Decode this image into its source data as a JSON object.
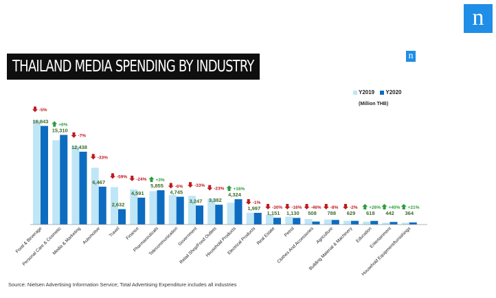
{
  "brand": {
    "logo_letter": "n",
    "logo_color": "#1f8ee6"
  },
  "title": "THAILAND MEDIA SPENDING BY INDUSTRY",
  "source": "Source: Nielsen Advertising Information Service; Total Advertising Expenditure includes all industries",
  "chart_data": {
    "type": "bar",
    "title": "THAILAND MEDIA SPENDING BY INDUSTRY",
    "unit_label": "(Million THB)",
    "categories": [
      "Food & Beverage",
      "Personal Care & Cosmetic",
      "Media & Marketing",
      "Automotive",
      "Travel",
      "Finance",
      "Pharmaceuticals",
      "Telecommunication",
      "Government",
      "Retail Shop/Food Outlets",
      "Household Products",
      "Electrical Products",
      "Real Estate",
      "Petrol",
      "Clothes And Accessories",
      "Agriculture",
      "Building Material & Machinery",
      "Education",
      "Entertainment",
      "Household Equipment/furnishings"
    ],
    "series": [
      {
        "name": "Y2019",
        "color": "#bfe6f6",
        "values": [
          17800,
          14400,
          13400,
          9700,
          6400,
          6000,
          5700,
          5050,
          4900,
          4400,
          3730,
          2020,
          1650,
          1340,
          940,
          860,
          640,
          490,
          316,
          300
        ]
      },
      {
        "name": "Y2020",
        "color": "#0d6cbf",
        "values": [
          16843,
          15310,
          12438,
          6467,
          2632,
          4591,
          5855,
          4745,
          3247,
          3382,
          4324,
          1997,
          1151,
          1130,
          508,
          788,
          629,
          618,
          442,
          364
        ]
      }
    ],
    "value_labels": [
      "16,843",
      "15,310",
      "12,438",
      "6,467",
      "2,632",
      "4,591",
      "5,855",
      "4,745",
      "3,247",
      "3,382",
      "4,324",
      "1,997",
      "1,151",
      "1,130",
      "508",
      "788",
      "629",
      "618",
      "442",
      "364"
    ],
    "changes": [
      "-5%",
      "+6%",
      "-7%",
      "-33%",
      "-59%",
      "-24%",
      "+3%",
      "-6%",
      "-33%",
      "-23%",
      "+16%",
      "-1%",
      "-30%",
      "-16%",
      "-46%",
      "-8%",
      "-2%",
      "+26%",
      "+40%",
      "+21%"
    ],
    "ylim": [
      0,
      19000
    ],
    "grid": false,
    "legend_position": "top-right",
    "colors": {
      "up": "#2a9d3a",
      "down": "#c0191f",
      "value_text": "#3d6b2a"
    }
  }
}
